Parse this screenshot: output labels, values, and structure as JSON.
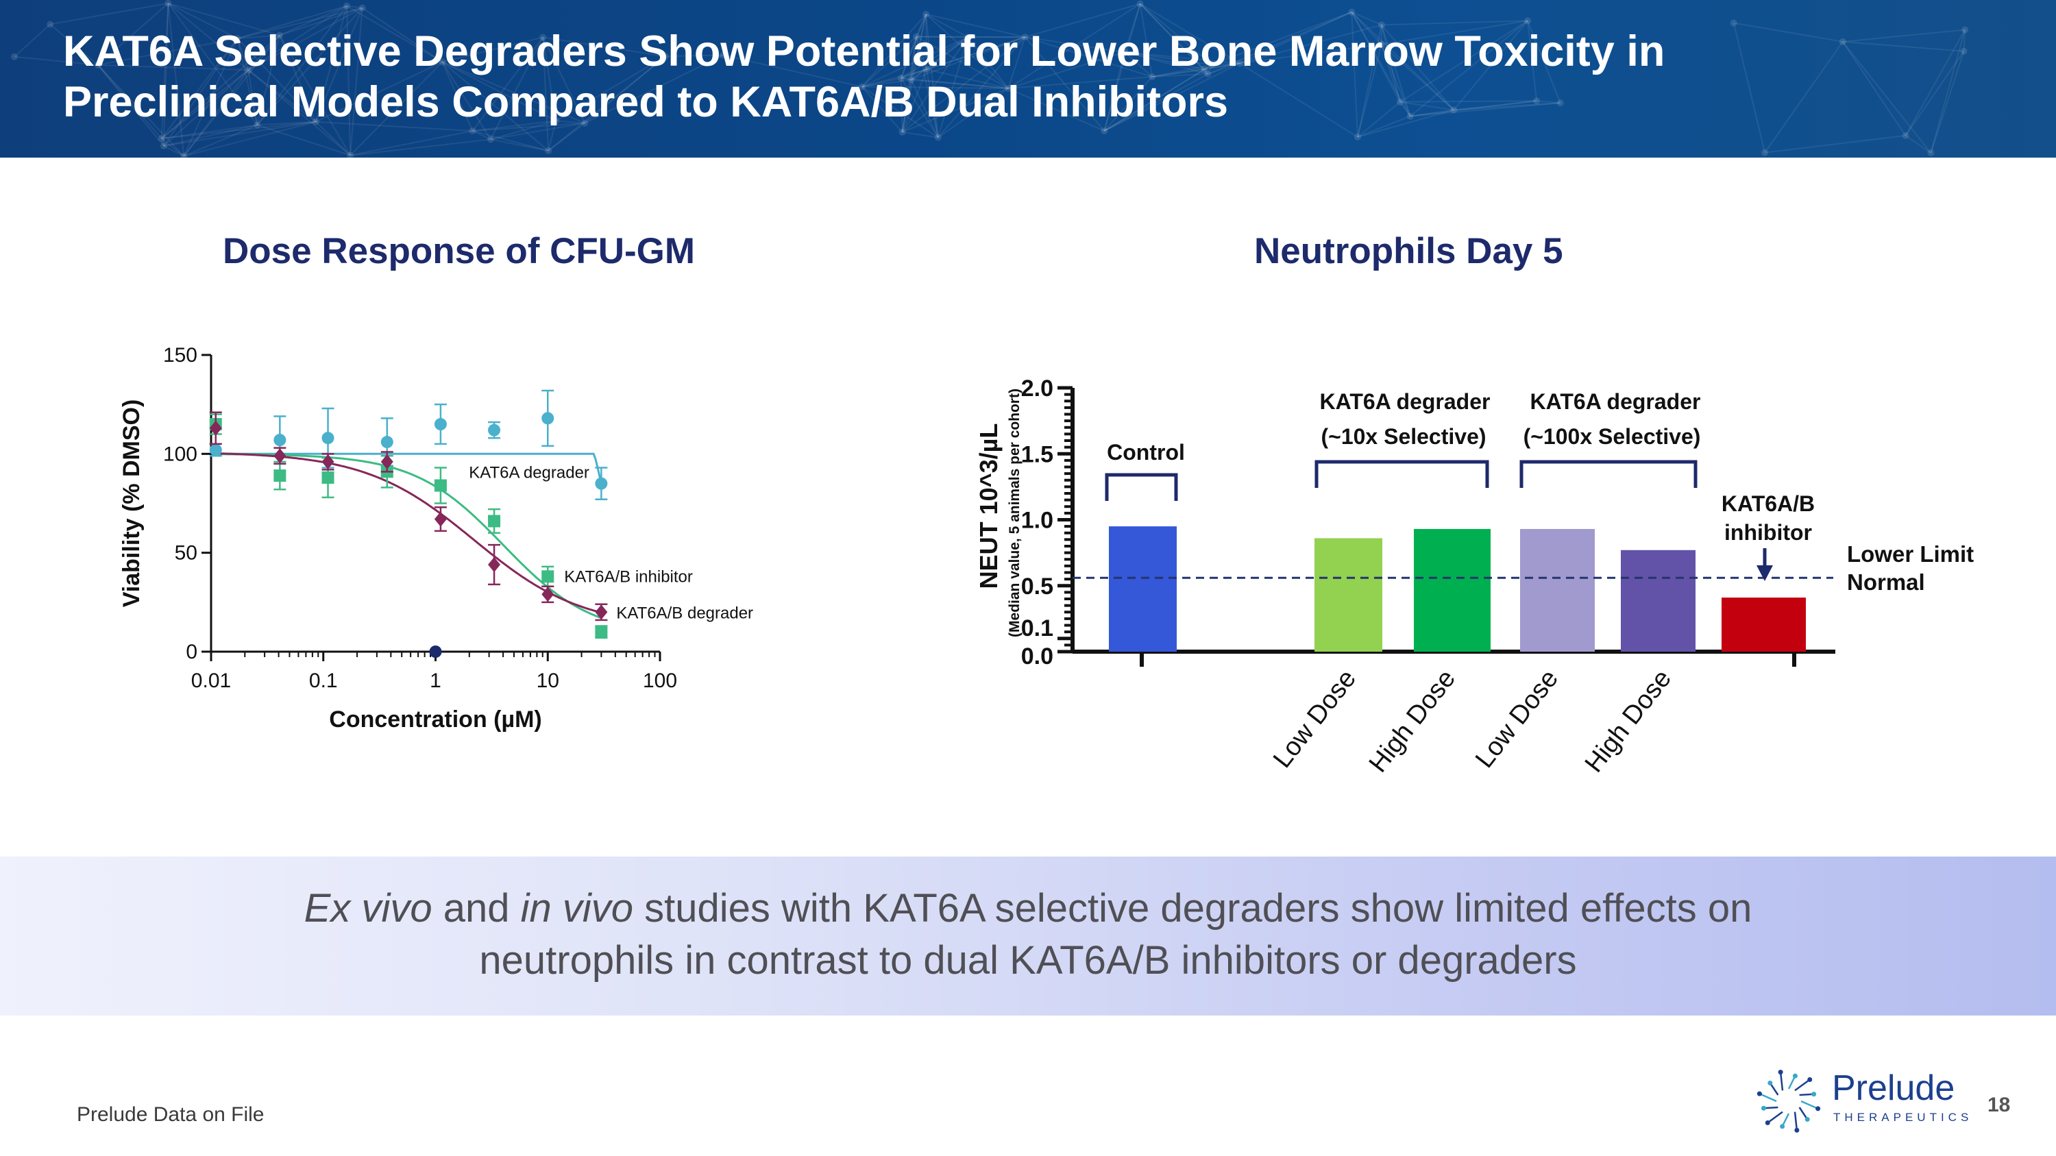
{
  "header": {
    "title_lines": [
      "KAT6A Selective Degraders Show Potential for Lower Bone Marrow Toxicity in",
      "Preclinical Models Compared to KAT6A/B Dual Inhibitors"
    ]
  },
  "chart_data": [
    {
      "type": "scatter",
      "title": "Dose Response of CFU-GM",
      "xlabel": "Concentration (µM)",
      "ylabel": "Viability (% DMSO)",
      "x_scale": "log",
      "xlim": [
        0.01,
        100
      ],
      "ylim": [
        0,
        150
      ],
      "x_ticks": [
        "0.01",
        "0.1",
        "1",
        "10",
        "100"
      ],
      "y_ticks": [
        "0",
        "50",
        "100",
        "150"
      ],
      "series": [
        {
          "name": "KAT6A degrader",
          "color": "#4ab0cc",
          "marker": "circle",
          "x": [
            0.011,
            0.041,
            0.11,
            0.37,
            1.11,
            3.33,
            10,
            30
          ],
          "y": [
            102,
            107,
            108,
            106,
            115,
            112,
            118,
            85
          ],
          "err": [
            3,
            12,
            15,
            12,
            10,
            4,
            14,
            8
          ],
          "fit": {
            "kind": "flat",
            "y_top": 100,
            "y_end": 85,
            "x_drop": 26
          }
        },
        {
          "name": "KAT6A/B inhibitor",
          "color": "#3dbb84",
          "marker": "square",
          "x": [
            0.011,
            0.041,
            0.11,
            0.37,
            1.11,
            3.33,
            10,
            30
          ],
          "y": [
            115,
            89,
            88,
            91,
            84,
            66,
            38,
            10
          ],
          "err": [
            5,
            7,
            10,
            8,
            9,
            6,
            5,
            3
          ],
          "fit": {
            "kind": "hill",
            "top": 100,
            "bottom": 8,
            "ic50": 4.0,
            "hill": 1.1
          }
        },
        {
          "name": "KAT6A/B degrader",
          "color": "#86275a",
          "marker": "diamond",
          "x": [
            0.011,
            0.041,
            0.11,
            0.37,
            1.11,
            3.33,
            10,
            30
          ],
          "y": [
            113,
            99,
            96,
            96,
            67,
            44,
            29,
            20
          ],
          "err": [
            8,
            4,
            4,
            5,
            6,
            10,
            4,
            4
          ],
          "fit": {
            "kind": "hill",
            "top": 101,
            "bottom": 12,
            "ic50": 2.2,
            "hill": 0.9
          }
        }
      ],
      "axis_point": {
        "x": 1,
        "y": 0,
        "color": "#1b2a6b"
      }
    },
    {
      "type": "bar",
      "title": "Neutrophils Day 5",
      "ylabel": "NEUT 10^3/µL",
      "ylabel_note": "(Median value, 5 animals per cohort)",
      "ylim": [
        0,
        2.0
      ],
      "y_ticks": [
        "0.0",
        "0.1",
        "0.5",
        "1.0",
        "1.5",
        "2.0"
      ],
      "categories": [
        "Control",
        "Low Dose",
        "High Dose",
        "Low Dose",
        "High Dose",
        "KAT6A/B inhibitor"
      ],
      "values": [
        0.95,
        0.86,
        0.93,
        0.93,
        0.77,
        0.41
      ],
      "colors": [
        "#3458d8",
        "#93d150",
        "#00b050",
        "#a19ace",
        "#6253a8",
        "#c3000e"
      ],
      "groups": [
        {
          "label_lines": [
            "Control"
          ],
          "bars": [
            0
          ]
        },
        {
          "label_lines": [
            "KAT6A degrader",
            "(~10x Selective)"
          ],
          "bars": [
            1,
            2
          ]
        },
        {
          "label_lines": [
            "KAT6A degrader",
            "(~100x Selective)"
          ],
          "bars": [
            3,
            4
          ]
        },
        {
          "label_lines": [
            "KAT6A/B",
            "inhibitor"
          ],
          "bars": [
            5
          ]
        }
      ],
      "reference_line": {
        "value": 0.56,
        "label_lines": [
          "Lower Limit",
          "Normal"
        ]
      }
    }
  ],
  "banner": {
    "line1": [
      {
        "text": "Ex vivo",
        "italic": true
      },
      {
        "text": " and ",
        "italic": false
      },
      {
        "text": "in vivo",
        "italic": true
      },
      {
        "text": " studies with KAT6A selective degraders show limited effects on",
        "italic": false
      }
    ],
    "line2": "neutrophils in contrast to dual KAT6A/B inhibitors or degraders"
  },
  "footer": {
    "note": "Prelude Data on File",
    "page_number": "18"
  },
  "logo": {
    "name": "Prelude",
    "sub": "THERAPEUTICS",
    "color": "#1c3f8f"
  }
}
